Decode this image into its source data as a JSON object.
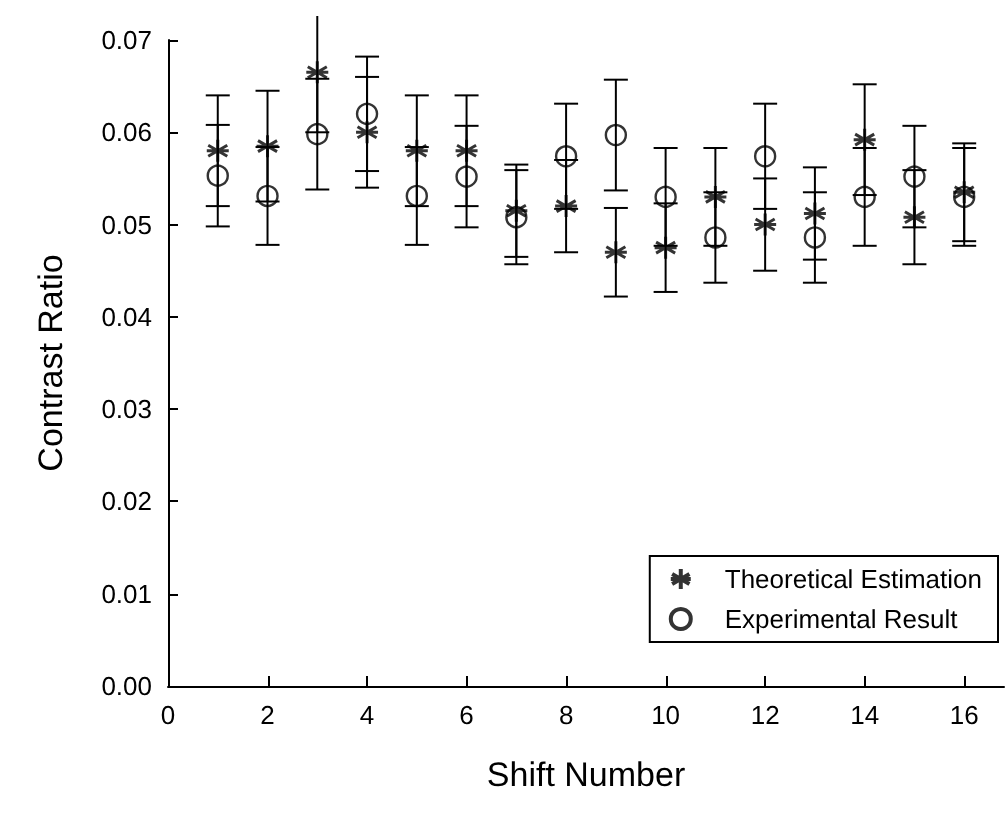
{
  "chart_data": {
    "type": "scatter",
    "xlabel": "Shift Number",
    "ylabel": "Contrast Ratio",
    "x": [
      1,
      2,
      3,
      4,
      5,
      6,
      7,
      8,
      9,
      10,
      11,
      12,
      13,
      14,
      15,
      16
    ],
    "series": [
      {
        "name": "Theoretical Estimation",
        "color": "#000000",
        "marker": "cross",
        "values": [
          0.058,
          0.0585,
          0.0665,
          0.06,
          0.058,
          0.058,
          0.0515,
          0.052,
          0.047,
          0.0475,
          0.053,
          0.05,
          0.0512,
          0.0592,
          0.0508,
          0.0535
        ],
        "errors": [
          0.006,
          0.006,
          0.0065,
          0.006,
          0.006,
          0.006,
          0.005,
          0.005,
          0.0048,
          0.0048,
          0.0053,
          0.005,
          0.005,
          0.006,
          0.0051,
          0.0053
        ]
      },
      {
        "name": "Experimental Result",
        "color": "#000000",
        "marker": "circle",
        "values": [
          0.0553,
          0.0531,
          0.0598,
          0.062,
          0.0531,
          0.0552,
          0.0508,
          0.0574,
          0.0597,
          0.053,
          0.0486,
          0.0574,
          0.0486,
          0.053,
          0.0552,
          0.053
        ],
        "errors": [
          0.0055,
          0.0053,
          0.006,
          0.0062,
          0.0053,
          0.0055,
          0.0051,
          0.0057,
          0.006,
          0.0053,
          0.0049,
          0.0057,
          0.0049,
          0.0053,
          0.0055,
          0.0053
        ]
      }
    ],
    "xlim": [
      0,
      16.8
    ],
    "xticks": [
      0,
      2,
      4,
      6,
      8,
      10,
      12,
      14,
      16
    ],
    "ylim": [
      0,
      0.07
    ],
    "yticks": [
      {
        "value": 0,
        "label": "0.00"
      },
      0.01,
      0.02,
      0.03,
      0.04,
      0.05,
      0.06,
      0.07
    ],
    "grid": false,
    "legend": "bottom right"
  }
}
